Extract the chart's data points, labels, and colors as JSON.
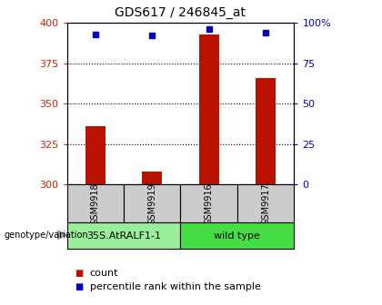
{
  "title": "GDS617 / 246845_at",
  "samples": [
    "GSM9918",
    "GSM9919",
    "GSM9916",
    "GSM9917"
  ],
  "counts": [
    336,
    308,
    393,
    366
  ],
  "percentiles": [
    93,
    92,
    96,
    94
  ],
  "ylim_left": [
    300,
    400
  ],
  "ylim_right": [
    0,
    100
  ],
  "yticks_left": [
    300,
    325,
    350,
    375,
    400
  ],
  "yticks_right": [
    0,
    25,
    50,
    75,
    100
  ],
  "groups": [
    {
      "label": "35S.AtRALF1-1",
      "color": "#99ee99"
    },
    {
      "label": "wild type",
      "color": "#44dd44"
    }
  ],
  "bar_color": "#bb1100",
  "dot_color": "#0000bb",
  "left_tick_color": "#cc2200",
  "right_tick_color": "#0000cc",
  "title_fontsize": 10,
  "legend_fontsize": 8,
  "sample_label_fontsize": 7,
  "group_label_fontsize": 8,
  "genotype_label": "genotype/variation",
  "legend_items": [
    "count",
    "percentile rank within the sample"
  ],
  "background_color": "#ffffff",
  "sample_bg_color": "#cccccc",
  "bar_width": 0.35
}
